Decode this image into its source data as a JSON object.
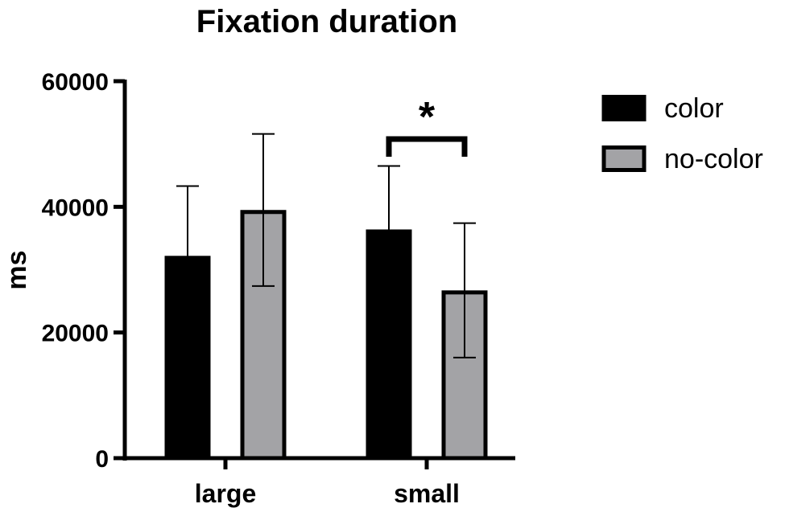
{
  "chart_data": {
    "type": "bar",
    "title": "Fixation duration",
    "xlabel": "",
    "ylabel": "ms",
    "ylim": [
      0,
      60000
    ],
    "yticks": [
      0,
      20000,
      40000,
      60000
    ],
    "yticklabels": [
      "0",
      "20000",
      "40000",
      "60000"
    ],
    "categories": [
      "large",
      "small"
    ],
    "series": [
      {
        "name": "color",
        "color": "#000000",
        "values": [
          32200,
          36400
        ],
        "error": [
          11100,
          10100
        ]
      },
      {
        "name": "no-color",
        "color": "#a3a3a6",
        "values": [
          39500,
          26700
        ],
        "error": [
          12100,
          10700
        ]
      }
    ],
    "significance": [
      {
        "category": "small",
        "label": "*"
      }
    ],
    "legend_position": "top-right",
    "grid": false
  }
}
